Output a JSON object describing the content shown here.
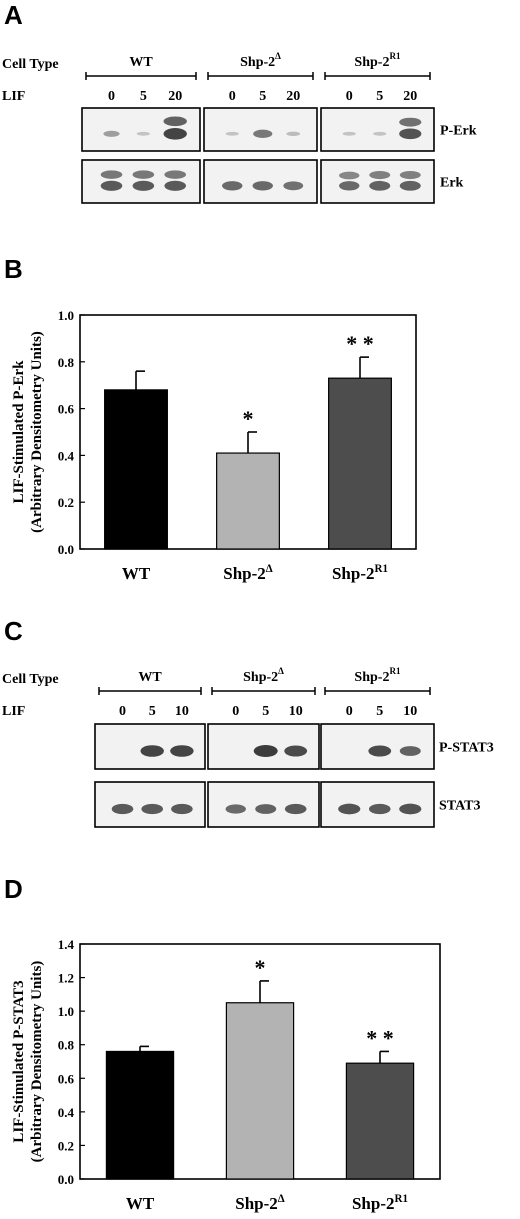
{
  "figure": {
    "panels": [
      {
        "letter": "A",
        "row_labels": {
          "cell_type": "Cell Type",
          "treatment": "LIF"
        },
        "groups": [
          {
            "name": "WT",
            "sup": "",
            "lanes": [
              "0",
              "5",
              "20"
            ]
          },
          {
            "name": "Shp-2",
            "sup": "Δ",
            "lanes": [
              "0",
              "5",
              "20"
            ]
          },
          {
            "name": "Shp-2",
            "sup": "R1",
            "lanes": [
              "0",
              "5",
              "20"
            ]
          }
        ],
        "blots": [
          {
            "label": "P-Erk",
            "intensity": [
              [
                0.35,
                0.1,
                0.95
              ],
              [
                0.1,
                0.6,
                0.15
              ],
              [
                0.1,
                0.1,
                0.85
              ]
            ],
            "double": [
              false,
              false,
              true,
              false,
              false,
              false,
              false,
              false,
              true
            ]
          },
          {
            "label": "Erk",
            "intensity": [
              [
                0.8,
                0.8,
                0.8
              ],
              [
                0.7,
                0.7,
                0.65
              ],
              [
                0.7,
                0.75,
                0.75
              ]
            ],
            "double": [
              true,
              true,
              true,
              false,
              false,
              false,
              true,
              true,
              true
            ]
          }
        ]
      },
      {
        "letter": "C",
        "row_labels": {
          "cell_type": "Cell Type",
          "treatment": "LIF"
        },
        "groups": [
          {
            "name": "WT",
            "sup": "",
            "lanes": [
              "0",
              "5",
              "10"
            ]
          },
          {
            "name": "Shp-2",
            "sup": "Δ",
            "lanes": [
              "0",
              "5",
              "10"
            ]
          },
          {
            "name": "Shp-2",
            "sup": "R1",
            "lanes": [
              "0",
              "5",
              "10"
            ]
          }
        ],
        "blots": [
          {
            "label": "P-STAT3",
            "intensity": [
              [
                0.0,
                0.95,
                0.95
              ],
              [
                0.0,
                1.0,
                0.9
              ],
              [
                0.0,
                0.9,
                0.75
              ]
            ],
            "double": []
          },
          {
            "label": "STAT3",
            "intensity": [
              [
                0.8,
                0.8,
                0.8
              ],
              [
                0.7,
                0.75,
                0.8
              ],
              [
                0.85,
                0.8,
                0.85
              ]
            ],
            "double": []
          }
        ]
      }
    ]
  },
  "chart_data": [
    {
      "panel": "B",
      "type": "bar",
      "ylabel_line1": "LIF-Stimulated P-Erk",
      "ylabel_line2": "(Arbitrary Densitometry Units)",
      "ylim": [
        0,
        1.0
      ],
      "yticks": [
        "0.0",
        "0.2",
        "0.4",
        "0.6",
        "0.8",
        "1.0"
      ],
      "categories": [
        {
          "name": "WT",
          "sup": ""
        },
        {
          "name": "Shp-2",
          "sup": "Δ"
        },
        {
          "name": "Shp-2",
          "sup": "R1"
        }
      ],
      "values": [
        0.68,
        0.41,
        0.73
      ],
      "errors": [
        0.08,
        0.09,
        0.09
      ],
      "annotations": [
        "",
        "*",
        "**"
      ],
      "colors": [
        "#000000",
        "#b3b3b3",
        "#4d4d4d"
      ]
    },
    {
      "panel": "D",
      "type": "bar",
      "ylabel_line1": "LIF-Stimulated P-STAT3",
      "ylabel_line2": "(Arbitrary Densitometry Units)",
      "ylim": [
        0,
        1.4
      ],
      "yticks": [
        "0.0",
        "0.2",
        "0.4",
        "0.6",
        "0.8",
        "1.0",
        "1.2",
        "1.4"
      ],
      "categories": [
        {
          "name": "WT",
          "sup": ""
        },
        {
          "name": "Shp-2",
          "sup": "Δ"
        },
        {
          "name": "Shp-2",
          "sup": "R1"
        }
      ],
      "values": [
        0.76,
        1.05,
        0.69
      ],
      "errors": [
        0.03,
        0.13,
        0.07
      ],
      "annotations": [
        "",
        "*",
        "**"
      ],
      "colors": [
        "#000000",
        "#b3b3b3",
        "#4d4d4d"
      ]
    }
  ]
}
